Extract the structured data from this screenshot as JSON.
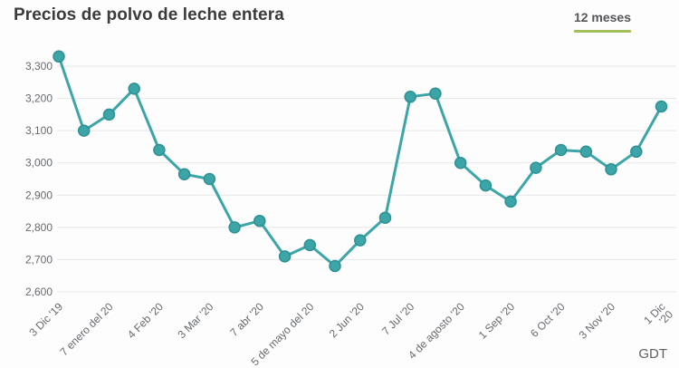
{
  "header": {
    "title": "Precios de polvo de leche entera",
    "period_selector": {
      "label": "12 meses"
    }
  },
  "footer": {
    "source": "GDT"
  },
  "colors": {
    "line": "#3BA5A7",
    "dot_fill": "#3BA5A7",
    "dot_stroke": "#2E9193",
    "grid": "#E7E7E7",
    "axis_text": "#66696E",
    "title_text": "#3B3B3D",
    "tab_text": "#56565A",
    "tab_underline": "#A4BE5C",
    "source_text": "#606060",
    "background": "#FDFDFD"
  },
  "chart_data": {
    "type": "line",
    "title": "Precios de polvo de leche entera",
    "xlabel": "",
    "ylabel": "",
    "legend": "none",
    "grid": "horizontal",
    "ylim": [
      2600,
      3300
    ],
    "y_tick_step": 100,
    "y_tick_labels": [
      "2,600",
      "2,700",
      "2,800",
      "2,900",
      "3,000",
      "3,100",
      "3,200",
      "3,300"
    ],
    "x_tick_label_rotation": -45,
    "x_label_every_n_points": 2,
    "x_tick_labels": [
      "3 Dic '19",
      "7 enero del 20",
      "4 Feb '20",
      "3 Mar '20",
      "7 abr '20",
      "5 de mayo del 20",
      "2 Jun '20",
      "7 Jul '20",
      "4 de agosto '20",
      "1 Sep '20",
      "6 Oct '20",
      "3 Nov '20",
      "1 Dic\n'20"
    ],
    "values": [
      3330,
      3100,
      3150,
      3230,
      3040,
      2965,
      2950,
      2800,
      2820,
      2710,
      2745,
      2680,
      2760,
      2830,
      3205,
      3215,
      3000,
      2930,
      2880,
      2985,
      3040,
      3035,
      2980,
      3035,
      3175
    ]
  }
}
